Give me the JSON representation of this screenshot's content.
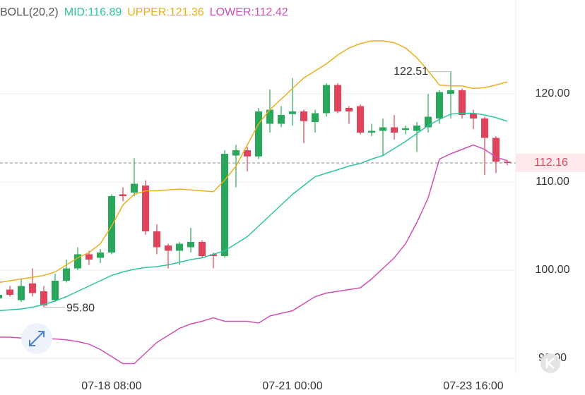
{
  "chart_data": {
    "type": "candlestick",
    "title": "BOLL(20,2)",
    "categories": [
      null,
      null,
      null,
      null,
      null,
      null,
      null,
      null,
      null,
      null,
      "07-18 08:00",
      null,
      null,
      null,
      null,
      null,
      null,
      null,
      null,
      null,
      null,
      null,
      null,
      null,
      null,
      null,
      "07-21 00:00",
      null,
      null,
      null,
      null,
      null,
      null,
      null,
      null,
      null,
      null,
      null,
      null,
      null,
      null,
      null,
      "07-23 16:00",
      null,
      null,
      null
    ],
    "open": [
      96.8,
      97.8,
      96.6,
      98.5,
      97.6,
      96.6,
      98.8,
      100.2,
      101.8,
      101.4,
      102.0,
      108.6,
      108.8,
      109.6,
      104.4,
      102.8,
      102.2,
      102.6,
      103.2,
      101.8,
      101.6,
      113.0,
      113.6,
      112.9,
      116.6,
      116.6,
      117.7,
      118.0,
      116.8,
      117.8,
      121.0,
      118.4,
      118.6,
      115.6,
      115.8,
      116.2,
      115.9,
      115.8,
      116.2,
      117.2,
      120.0,
      120.4,
      117.8,
      117.2,
      115.0,
      112.3
    ],
    "high": [
      97.4,
      98.2,
      99.0,
      100.2,
      98.2,
      99.6,
      101.2,
      102.6,
      102.2,
      102.4,
      108.6,
      109.4,
      112.7,
      110.2,
      105.2,
      103.0,
      103.2,
      104.8,
      103.4,
      102.0,
      113.6,
      114.2,
      114.0,
      118.4,
      120.5,
      118.6,
      121.8,
      118.2,
      118.2,
      121.2,
      121.2,
      118.6,
      118.8,
      116.6,
      117.2,
      117.6,
      116.4,
      116.8,
      120.0,
      120.4,
      122.51,
      120.6,
      118.2,
      117.4,
      115.2,
      112.5
    ],
    "low": [
      96.6,
      97.0,
      96.4,
      97.0,
      95.8,
      96.4,
      98.6,
      100.0,
      100.6,
      100.8,
      101.8,
      107.8,
      108.4,
      104.0,
      101.8,
      100.2,
      100.6,
      102.0,
      101.4,
      100.2,
      101.4,
      109.4,
      111.2,
      112.6,
      115.6,
      116.2,
      116.4,
      114.4,
      115.6,
      117.4,
      117.8,
      116.6,
      115.4,
      115.2,
      113.0,
      114.8,
      115.4,
      113.4,
      115.6,
      116.6,
      117.2,
      117.2,
      116.0,
      110.8,
      111.0,
      111.9
    ],
    "close": [
      97.2,
      97.2,
      98.2,
      97.4,
      96.0,
      98.8,
      100.2,
      101.8,
      101.2,
      102.0,
      108.4,
      108.4,
      109.8,
      104.4,
      102.6,
      102.2,
      103.0,
      103.2,
      101.6,
      101.6,
      113.2,
      113.6,
      112.9,
      118.0,
      118.2,
      117.6,
      118.0,
      116.9,
      117.8,
      121.0,
      118.0,
      118.0,
      115.6,
      115.8,
      116.2,
      115.6,
      116.1,
      116.4,
      117.4,
      120.2,
      120.4,
      117.6,
      117.2,
      115.0,
      112.3,
      112.16
    ],
    "up_color": "#27a85a",
    "down_color": "#e0435a",
    "series": [
      {
        "name": "MID:",
        "color": "#2ec4a0",
        "values": [
          95.4,
          95.5,
          95.6,
          95.8,
          96.1,
          96.5,
          97.0,
          97.6,
          98.2,
          98.8,
          99.4,
          99.8,
          100.1,
          100.3,
          100.4,
          100.6,
          100.9,
          101.2,
          101.4,
          101.8,
          102.2,
          103.0,
          103.8,
          105.0,
          106.2,
          107.4,
          108.6,
          109.6,
          110.6,
          111.0,
          111.4,
          111.8,
          112.1,
          112.6,
          113.0,
          113.8,
          114.6,
          115.5,
          116.4,
          117.1,
          117.7,
          117.8,
          117.8,
          117.6,
          117.3,
          116.89
        ]
      },
      {
        "name": "UPPER:",
        "color": "#e8b01c",
        "values": [
          98.6,
          98.8,
          99.0,
          99.2,
          99.4,
          99.8,
          100.6,
          101.4,
          102.0,
          103.0,
          105.0,
          107.4,
          108.6,
          109.0,
          109.0,
          109.1,
          109.2,
          109.1,
          109.0,
          108.9,
          110.2,
          111.8,
          114.2,
          116.6,
          118.2,
          119.4,
          120.6,
          121.8,
          122.6,
          123.4,
          124.4,
          125.2,
          125.7,
          126.0,
          126.0,
          125.8,
          125.2,
          124.1,
          122.6,
          121.0,
          120.9,
          120.9,
          120.6,
          120.7,
          121.0,
          121.36
        ]
      },
      {
        "name": "LOWER:",
        "color": "#d04fb5",
        "values": [
          92.4,
          92.4,
          92.3,
          92.3,
          92.2,
          92.2,
          92.1,
          91.9,
          91.6,
          91.0,
          90.2,
          89.4,
          89.4,
          90.6,
          91.8,
          92.6,
          93.4,
          93.9,
          94.2,
          94.6,
          94.2,
          94.2,
          94.2,
          94.0,
          94.8,
          95.1,
          95.4,
          96.2,
          97.0,
          97.4,
          97.6,
          97.8,
          98.0,
          99.0,
          100.2,
          101.4,
          103.0,
          105.4,
          108.2,
          112.6,
          113.2,
          113.7,
          114.2,
          113.7,
          112.8,
          112.42
        ]
      }
    ],
    "ylim": [
      88.24,
      130.64
    ],
    "yticks": [
      {
        "value": 90,
        "label": "90.00"
      },
      {
        "value": 100,
        "label": "100.00"
      },
      {
        "value": 110,
        "label": "110.00"
      },
      {
        "value": 120,
        "label": "120.00"
      }
    ],
    "grid": true,
    "annotations": [
      {
        "value": 122.51,
        "label": "122.51"
      },
      {
        "value": 95.8,
        "label": "95.80"
      }
    ]
  }
}
